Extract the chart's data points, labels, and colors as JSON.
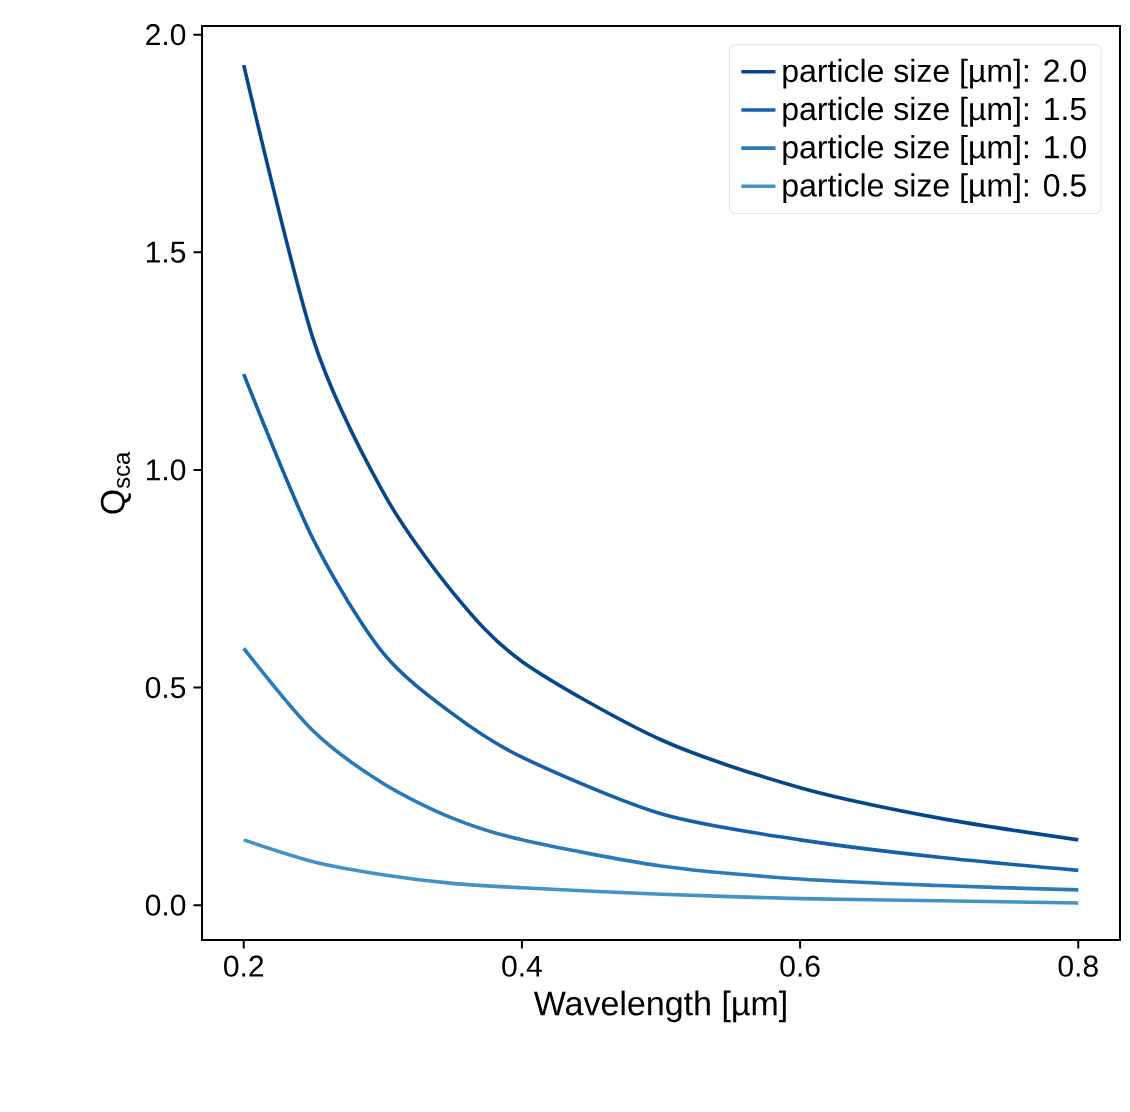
{
  "chart_data": {
    "type": "line",
    "xlabel": "Wavelength [µm]",
    "ylabel": "Q$_{sca}$",
    "x": [
      0.2,
      0.25,
      0.3,
      0.35,
      0.4,
      0.5,
      0.6,
      0.7,
      0.8
    ],
    "series": [
      {
        "name": "particle size [µm]: 2.0",
        "color": "#08468b",
        "values": [
          1.93,
          1.3,
          0.95,
          0.72,
          0.56,
          0.38,
          0.27,
          0.2,
          0.15
        ]
      },
      {
        "name": "particle size [µm]: 1.5",
        "color": "#1561a9",
        "values": [
          1.22,
          0.84,
          0.58,
          0.44,
          0.34,
          0.21,
          0.15,
          0.11,
          0.08
        ]
      },
      {
        "name": "particle size [µm]: 1.0",
        "color": "#2b7bba",
        "values": [
          0.59,
          0.4,
          0.28,
          0.2,
          0.15,
          0.09,
          0.06,
          0.045,
          0.035
        ]
      },
      {
        "name": "particle size [µm]: 0.5",
        "color": "#4292c6",
        "values": [
          0.15,
          0.1,
          0.07,
          0.05,
          0.04,
          0.025,
          0.015,
          0.01,
          0.005
        ]
      }
    ],
    "xlim": [
      0.17,
      0.83
    ],
    "ylim": [
      -0.08,
      2.02
    ],
    "xticks": [
      {
        "value": 0.2,
        "label": "0.2"
      },
      {
        "value": 0.4,
        "label": "0.4"
      },
      {
        "value": 0.6,
        "label": "0.6"
      },
      {
        "value": 0.8,
        "label": "0.8"
      }
    ],
    "yticks": [
      {
        "value": 0,
        "label": "0.0"
      },
      {
        "value": 0.5,
        "label": "0.5"
      },
      {
        "value": 1,
        "label": "1.0"
      },
      {
        "value": 1.5,
        "label": "1.5"
      },
      {
        "value": 2,
        "label": "2.0"
      }
    ],
    "grid": false,
    "legend": "top right",
    "marker": "none",
    "line_style": "solid"
  }
}
